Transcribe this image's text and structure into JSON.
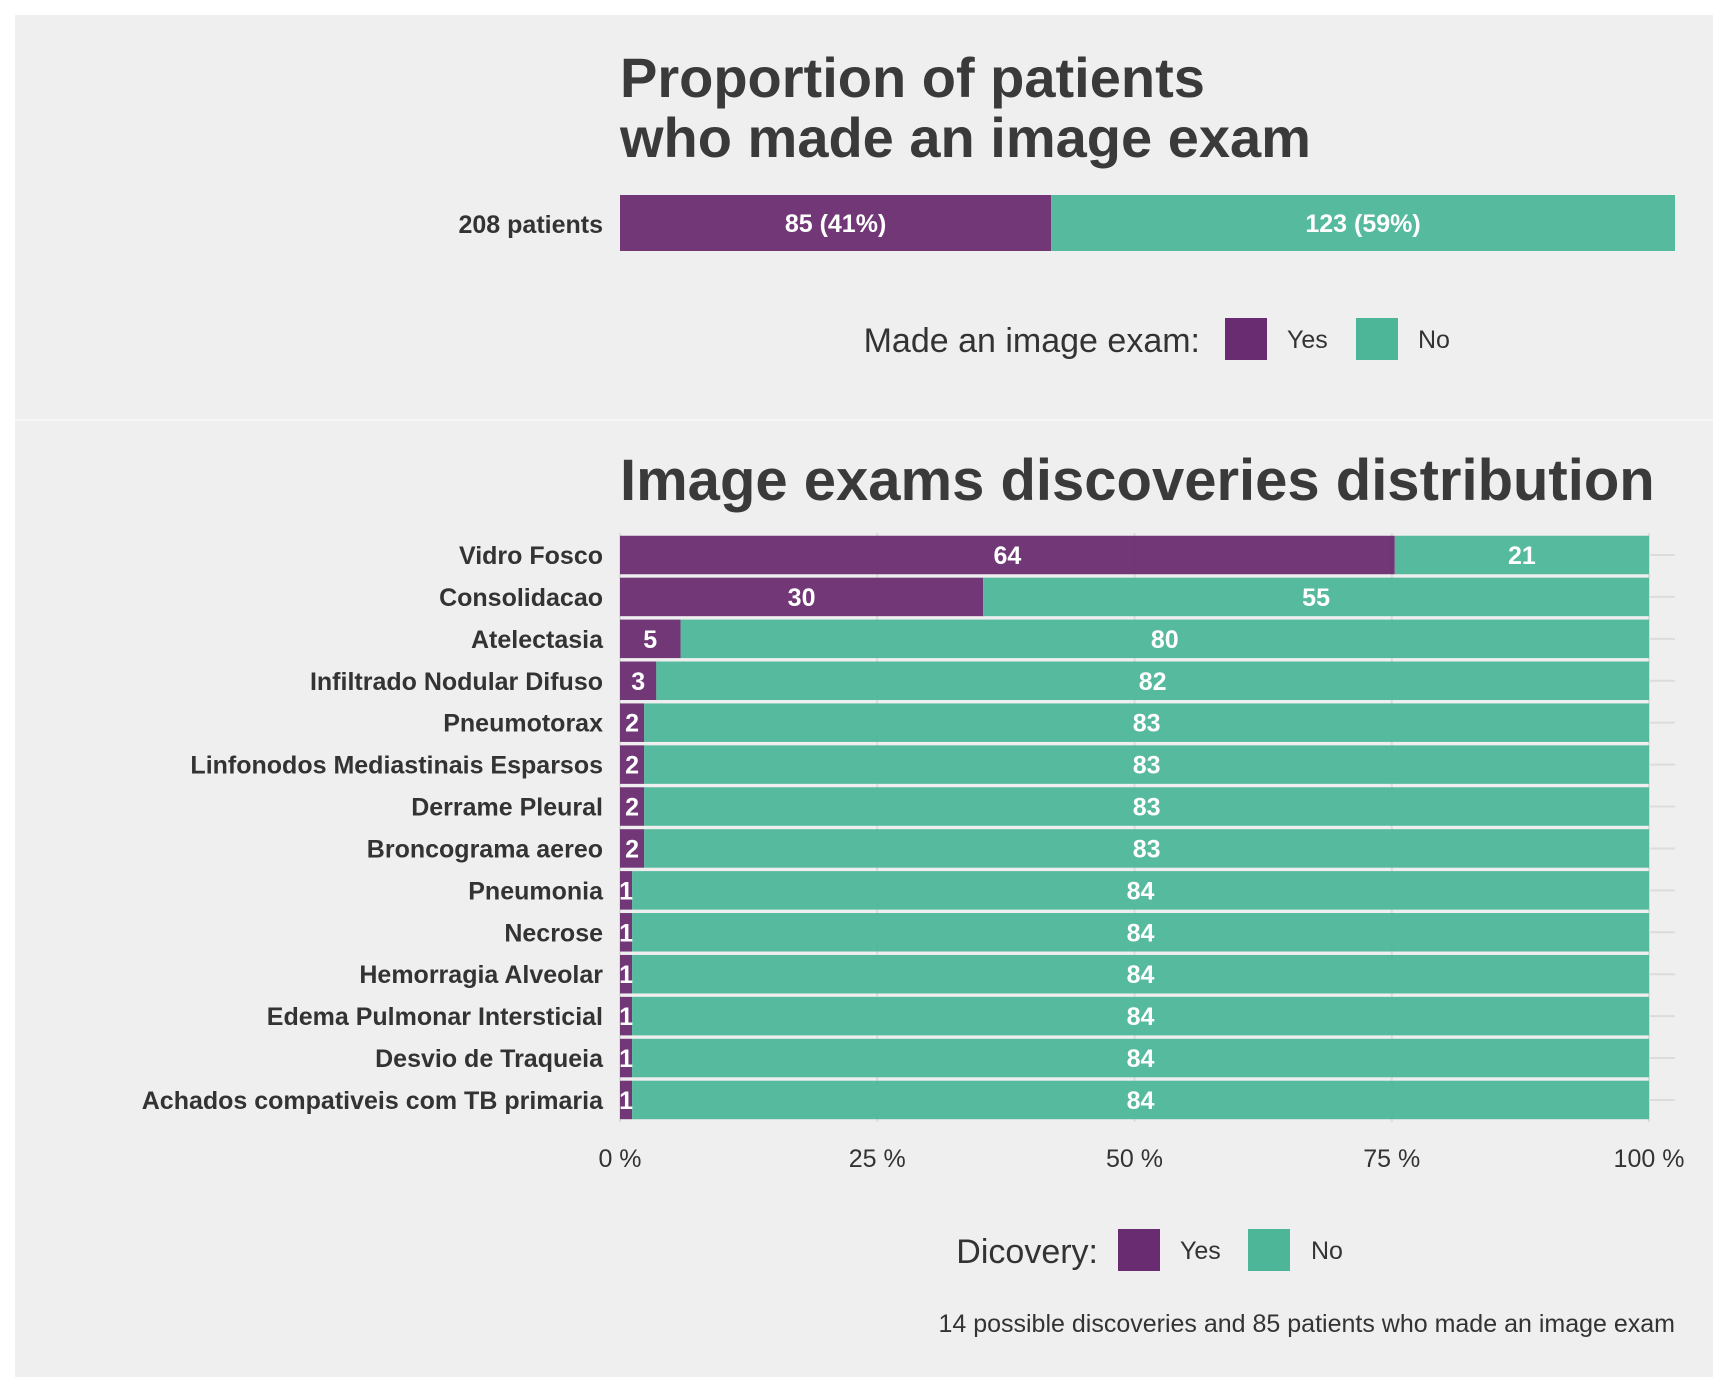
{
  "colors": {
    "yes": "#6a2c70",
    "no": "#4db699",
    "panel_bg": "#efefef",
    "text": "#333333"
  },
  "chart_data": [
    {
      "type": "bar",
      "orientation": "horizontal",
      "stacked": true,
      "title_lines": [
        "Proportion of patients",
        "who made an image exam"
      ],
      "categories": [
        "208 patients"
      ],
      "series": [
        {
          "name": "Yes",
          "values": [
            85
          ],
          "labels": [
            "85 (41%)"
          ]
        },
        {
          "name": "No",
          "values": [
            123
          ],
          "labels": [
            "123 (59%)"
          ]
        }
      ],
      "legend": {
        "title": "Made an image exam:",
        "items": [
          "Yes",
          "No"
        ],
        "position": "bottom"
      }
    },
    {
      "type": "bar",
      "orientation": "horizontal",
      "stacked": true,
      "normalized": true,
      "title": "Image exams discoveries distribution",
      "categories": [
        "Vidro Fosco",
        "Consolidacao",
        "Atelectasia",
        "Infiltrado Nodular Difuso",
        "Pneumotorax",
        "Linfonodos Mediastinais Esparsos",
        "Derrame Pleural",
        "Broncograma aereo",
        "Pneumonia",
        "Necrose",
        "Hemorragia Alveolar",
        "Edema Pulmonar Intersticial",
        "Desvio de Traqueia",
        "Achados compativeis com TB primaria"
      ],
      "series": [
        {
          "name": "Yes",
          "values": [
            64,
            30,
            5,
            3,
            2,
            2,
            2,
            2,
            1,
            1,
            1,
            1,
            1,
            1
          ]
        },
        {
          "name": "No",
          "values": [
            21,
            55,
            80,
            82,
            83,
            83,
            83,
            83,
            84,
            84,
            84,
            84,
            84,
            84
          ]
        }
      ],
      "xlim": [
        0,
        100
      ],
      "x_ticks": [
        "0 %",
        "25 %",
        "50 %",
        "75 %",
        "100 %"
      ],
      "grid": true,
      "legend": {
        "title": "Dicovery:",
        "items": [
          "Yes",
          "No"
        ],
        "position": "bottom"
      },
      "caption": "14 possible discoveries and 85 patients who made an image exam"
    }
  ]
}
